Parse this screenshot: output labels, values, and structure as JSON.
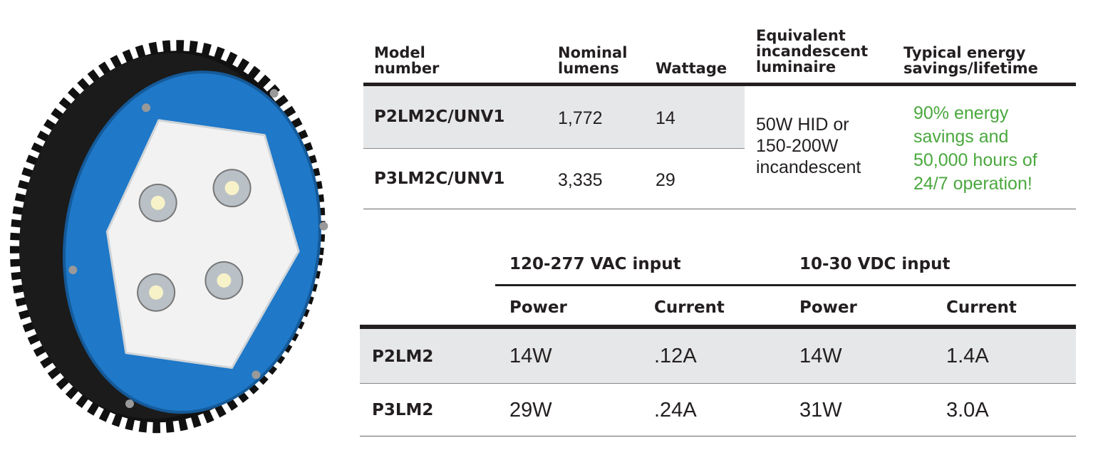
{
  "spec_table": {
    "headers": [
      [
        "Model",
        "number"
      ],
      [
        "Nominal",
        "lumens"
      ],
      [
        "Wattage"
      ],
      [
        "Equivalent",
        "incandescent",
        "luminaire"
      ],
      [
        "Typical energy",
        "savings/lifetime"
      ]
    ],
    "rows": [
      [
        "P2LM2C/UNV1",
        "1,772",
        "14"
      ],
      [
        "P3LM2C/UNV1",
        "3,335",
        "29"
      ]
    ],
    "equivalent": [
      "50W HID or",
      "150-200W",
      "incandescent"
    ],
    "savings": [
      "90% energy",
      "savings and",
      "50,000 hours of",
      "24/7 operation!"
    ]
  },
  "input_table": {
    "groups": [
      "120-277 VAC input",
      "10-30 VDC input"
    ],
    "subheaders": [
      "Power",
      "Current",
      "Power",
      "Current"
    ],
    "rows": [
      [
        "P2LM2",
        "14W",
        ".12A",
        "14W",
        "1.4A"
      ],
      [
        "P3LM2",
        "29W",
        ".24A",
        "31W",
        "3.0A"
      ]
    ]
  }
}
